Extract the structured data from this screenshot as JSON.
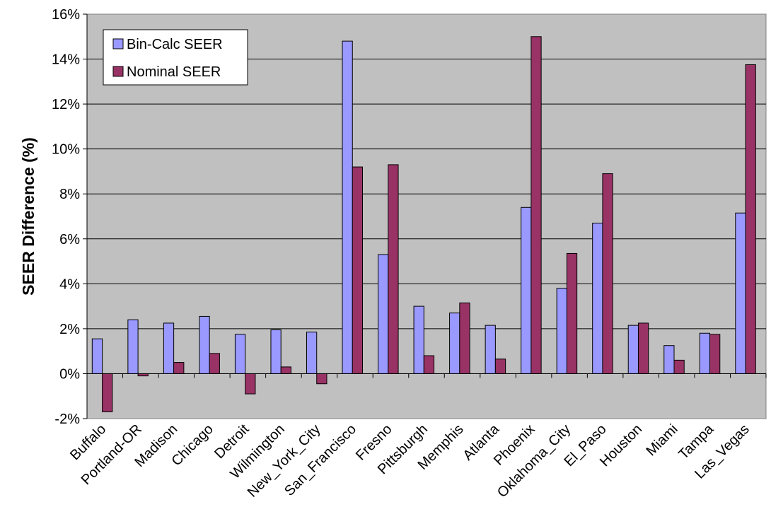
{
  "chart_data": {
    "type": "bar",
    "title": "",
    "xlabel": "",
    "ylabel": "SEER Difference (%)",
    "ylim": [
      -2,
      16
    ],
    "ytick_step": 2,
    "ytick_suffix": "%",
    "grid": "horizontal",
    "legend_position": "top-left",
    "plot_background": "#c0c0c0",
    "categories": [
      "Buffalo",
      "Portland-OR",
      "Madison",
      "Chicago",
      "Detroit",
      "Wilmington",
      "New_York_City",
      "San_Francisco",
      "Fresno",
      "Pittsburgh",
      "Memphis",
      "Atlanta",
      "Phoenix",
      "Oklahoma_City",
      "El_Paso",
      "Houston",
      "Miami",
      "Tampa",
      "Las_Vegas"
    ],
    "series": [
      {
        "name": "Bin-Calc SEER",
        "color": "#9999ff",
        "values": [
          1.55,
          2.4,
          2.25,
          2.55,
          1.75,
          1.95,
          1.85,
          14.8,
          5.3,
          3.0,
          2.7,
          2.15,
          7.4,
          3.8,
          6.7,
          2.15,
          1.25,
          1.8,
          7.15
        ]
      },
      {
        "name": "Nominal SEER",
        "color": "#993366",
        "values": [
          -1.7,
          -0.1,
          0.5,
          0.9,
          -0.9,
          0.3,
          -0.45,
          9.2,
          9.3,
          0.8,
          3.15,
          0.65,
          15.0,
          5.35,
          8.9,
          2.25,
          0.6,
          1.75,
          13.75
        ]
      }
    ]
  }
}
